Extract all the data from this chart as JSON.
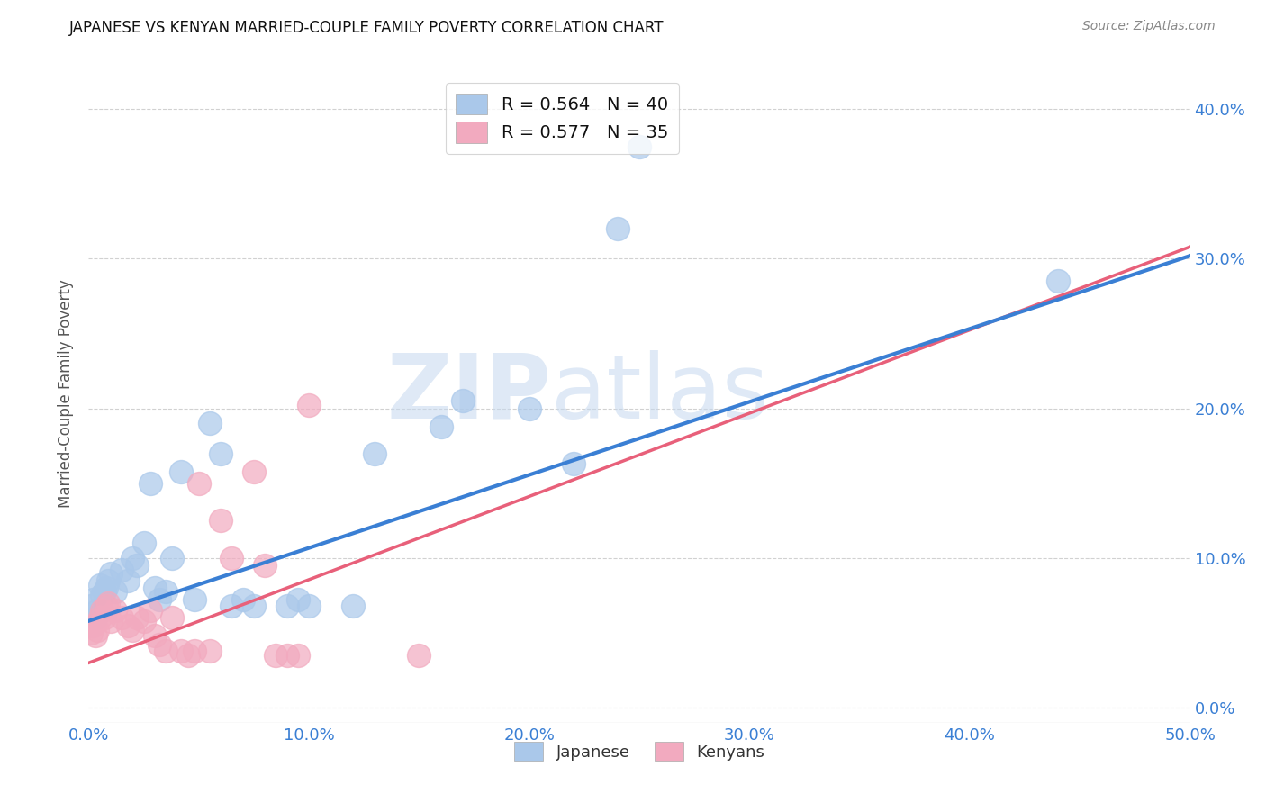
{
  "title": "JAPANESE VS KENYAN MARRIED-COUPLE FAMILY POVERTY CORRELATION CHART",
  "source": "Source: ZipAtlas.com",
  "ylabel": "Married-Couple Family Poverty",
  "xlim": [
    0,
    0.5
  ],
  "ylim": [
    -0.01,
    0.43
  ],
  "xticks": [
    0.0,
    0.1,
    0.2,
    0.3,
    0.4,
    0.5
  ],
  "yticks": [
    0.0,
    0.1,
    0.2,
    0.3,
    0.4
  ],
  "background_color": "#ffffff",
  "grid_color": "#cccccc",
  "watermark_zip": "ZIP",
  "watermark_atlas": "atlas",
  "watermark_color_zip": "#c5d8ef",
  "watermark_color_atlas": "#c5d8ef",
  "japanese_color": "#aac8ea",
  "kenyan_color": "#f2aabf",
  "japanese_R": "0.564",
  "japanese_N": "40",
  "kenyan_R": "0.577",
  "kenyan_N": "35",
  "legend_label_japanese": "Japanese",
  "legend_label_kenyan": "Kenyans",
  "japanese_points": [
    [
      0.001,
      0.068
    ],
    [
      0.002,
      0.072
    ],
    [
      0.003,
      0.06
    ],
    [
      0.004,
      0.065
    ],
    [
      0.005,
      0.082
    ],
    [
      0.006,
      0.075
    ],
    [
      0.007,
      0.078
    ],
    [
      0.008,
      0.08
    ],
    [
      0.009,
      0.085
    ],
    [
      0.01,
      0.09
    ],
    [
      0.012,
      0.078
    ],
    [
      0.015,
      0.092
    ],
    [
      0.018,
      0.085
    ],
    [
      0.02,
      0.1
    ],
    [
      0.022,
      0.095
    ],
    [
      0.025,
      0.11
    ],
    [
      0.028,
      0.15
    ],
    [
      0.03,
      0.08
    ],
    [
      0.032,
      0.072
    ],
    [
      0.035,
      0.078
    ],
    [
      0.038,
      0.1
    ],
    [
      0.042,
      0.158
    ],
    [
      0.048,
      0.072
    ],
    [
      0.055,
      0.19
    ],
    [
      0.06,
      0.17
    ],
    [
      0.065,
      0.068
    ],
    [
      0.07,
      0.072
    ],
    [
      0.075,
      0.068
    ],
    [
      0.09,
      0.068
    ],
    [
      0.095,
      0.072
    ],
    [
      0.1,
      0.068
    ],
    [
      0.12,
      0.068
    ],
    [
      0.13,
      0.17
    ],
    [
      0.16,
      0.188
    ],
    [
      0.17,
      0.205
    ],
    [
      0.2,
      0.2
    ],
    [
      0.22,
      0.163
    ],
    [
      0.24,
      0.32
    ],
    [
      0.25,
      0.375
    ],
    [
      0.44,
      0.285
    ]
  ],
  "kenyan_points": [
    [
      0.001,
      0.05
    ],
    [
      0.002,
      0.055
    ],
    [
      0.003,
      0.048
    ],
    [
      0.004,
      0.052
    ],
    [
      0.005,
      0.06
    ],
    [
      0.006,
      0.065
    ],
    [
      0.007,
      0.06
    ],
    [
      0.008,
      0.068
    ],
    [
      0.009,
      0.07
    ],
    [
      0.01,
      0.058
    ],
    [
      0.012,
      0.065
    ],
    [
      0.015,
      0.06
    ],
    [
      0.018,
      0.055
    ],
    [
      0.02,
      0.052
    ],
    [
      0.022,
      0.06
    ],
    [
      0.025,
      0.058
    ],
    [
      0.028,
      0.065
    ],
    [
      0.03,
      0.048
    ],
    [
      0.032,
      0.042
    ],
    [
      0.035,
      0.038
    ],
    [
      0.038,
      0.06
    ],
    [
      0.042,
      0.038
    ],
    [
      0.045,
      0.035
    ],
    [
      0.048,
      0.038
    ],
    [
      0.05,
      0.15
    ],
    [
      0.055,
      0.038
    ],
    [
      0.06,
      0.125
    ],
    [
      0.065,
      0.1
    ],
    [
      0.075,
      0.158
    ],
    [
      0.08,
      0.095
    ],
    [
      0.085,
      0.035
    ],
    [
      0.09,
      0.035
    ],
    [
      0.095,
      0.035
    ],
    [
      0.1,
      0.202
    ],
    [
      0.15,
      0.035
    ]
  ],
  "japanese_line_color": "#3a7fd4",
  "kenyan_line_color": "#e8607a",
  "japanese_line": {
    "x0": 0.0,
    "y0": 0.058,
    "x1": 0.5,
    "y1": 0.302
  },
  "kenyan_line": {
    "x0": 0.0,
    "y0": 0.03,
    "x1": 0.5,
    "y1": 0.308
  },
  "right_tick_color": "#3a7fd4",
  "bottom_tick_color": "#3a7fd4"
}
